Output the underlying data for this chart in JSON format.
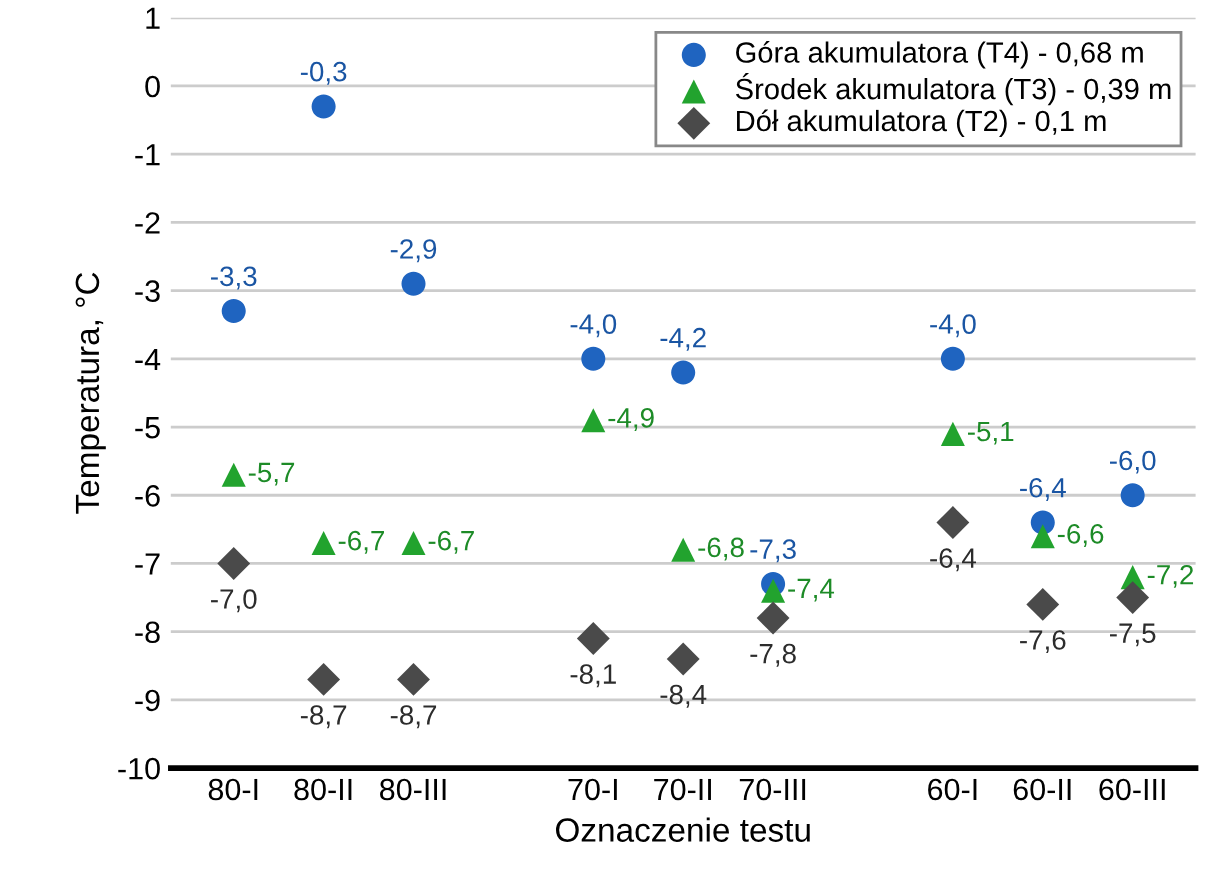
{
  "chart_data": {
    "type": "scatter",
    "xlabel": "Oznaczenie testu",
    "ylabel": "Temperatura, °C",
    "categories": [
      "80-I",
      "80-II",
      "80-III",
      null,
      "70-I",
      "70-II",
      "70-III",
      null,
      "60-I",
      "60-II",
      "60-III"
    ],
    "series": [
      {
        "name": "Góra akumulatora (T4) - 0,68 m",
        "color": "#1f64c0",
        "marker": "circle",
        "values": [
          -3.3,
          -0.3,
          -2.9,
          null,
          -4.0,
          -4.2,
          -7.3,
          null,
          -4.0,
          -6.4,
          -6.0
        ],
        "value_labels": [
          "-3,3",
          "-0,3",
          "-2,9",
          null,
          "-4,0",
          "-4,2",
          "-7,3",
          null,
          "-4,0",
          "-6,4",
          "-6,0"
        ]
      },
      {
        "name": "Środek akumulatora (T3) - 0,39 m",
        "color": "#22a32e",
        "marker": "triangle",
        "values": [
          -5.7,
          -6.7,
          -6.7,
          null,
          -4.9,
          -6.8,
          -7.4,
          null,
          -5.1,
          -6.6,
          -7.2
        ],
        "value_labels": [
          "-5,7",
          "-6,7",
          "-6,7",
          null,
          "-4,9",
          "-6,8",
          "-7,4",
          null,
          "-5,1",
          "-6,6",
          "-7,2"
        ]
      },
      {
        "name": "Dół akumulatora (T2) - 0,1 m",
        "color": "#4a4a4a",
        "marker": "diamond",
        "values": [
          -7.0,
          -8.7,
          -8.7,
          null,
          -8.1,
          -8.4,
          -7.8,
          null,
          -6.4,
          -7.6,
          -7.5
        ],
        "value_labels": [
          "-7,0",
          "-8,7",
          "-8,7",
          null,
          "-8,1",
          "-8,4",
          "-7,8",
          null,
          "-6,4",
          "-7,6",
          "-7,5"
        ]
      }
    ],
    "ylim": [
      -10,
      1
    ],
    "yticks": [
      -10,
      -9,
      -8,
      -7,
      -6,
      -5,
      -4,
      -3,
      -2,
      -1,
      0,
      1
    ],
    "grid": "y",
    "legend": "top right"
  }
}
